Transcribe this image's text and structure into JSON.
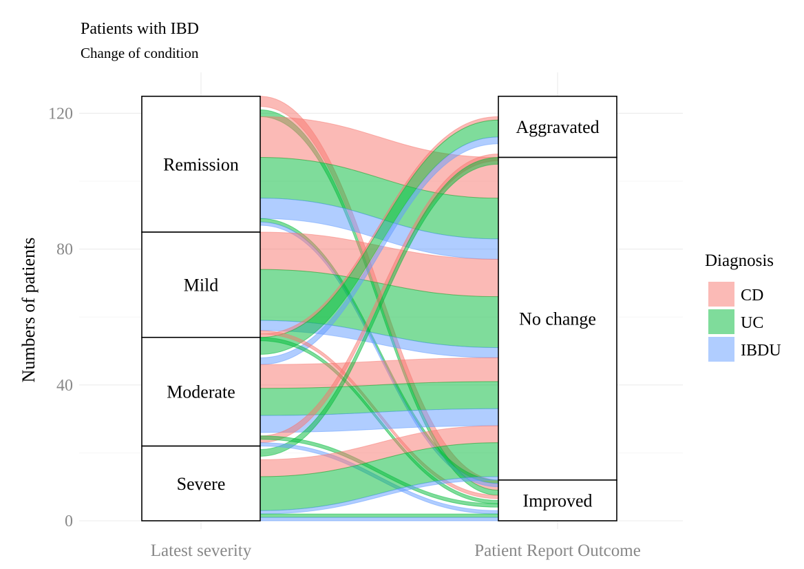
{
  "chart_data": {
    "type": "alluvial",
    "title": "Patients with IBD",
    "subtitle": "Change of condition",
    "ylabel": "Numbers of patients",
    "xlabel": "",
    "ylim": [
      0,
      125
    ],
    "yticks": [
      0,
      40,
      80,
      120
    ],
    "axes": [
      "Latest severity",
      "Patient Report Outcome"
    ],
    "grid": true,
    "legend": {
      "title": "Diagnosis",
      "position": "right"
    },
    "groups": [
      {
        "name": "CD",
        "color": "#F8766D"
      },
      {
        "name": "UC",
        "color": "#00BA38"
      },
      {
        "name": "IBDU",
        "color": "#619CFF"
      }
    ],
    "strata": {
      "Latest severity": [
        {
          "label": "Remission",
          "range": [
            85,
            125
          ]
        },
        {
          "label": "Mild",
          "range": [
            54,
            85
          ]
        },
        {
          "label": "Moderate",
          "range": [
            22,
            54
          ]
        },
        {
          "label": "Severe",
          "range": [
            0,
            22
          ]
        }
      ],
      "Patient Report Outcome": [
        {
          "label": "Aggravated",
          "range": [
            107,
            125
          ]
        },
        {
          "label": "No change",
          "range": [
            12,
            107
          ]
        },
        {
          "label": "Improved",
          "range": [
            0,
            12
          ]
        }
      ]
    },
    "flows": [
      {
        "group": "CD",
        "from": "Remission",
        "to": "Improved",
        "value": 3,
        "left": [
          122,
          125
        ],
        "right": [
          9,
          12
        ]
      },
      {
        "group": "UC",
        "from": "Remission",
        "to": "Improved",
        "value": 1,
        "left": [
          119,
          121
        ],
        "right": [
          7.5,
          9
        ]
      },
      {
        "group": "CD",
        "from": "Remission",
        "to": "No change",
        "value": 12,
        "left": [
          107,
          119
        ],
        "right": [
          95,
          107
        ]
      },
      {
        "group": "UC",
        "from": "Remission",
        "to": "No change",
        "value": 12,
        "left": [
          95,
          107
        ],
        "right": [
          83,
          95
        ]
      },
      {
        "group": "IBDU",
        "from": "Remission",
        "to": "No change",
        "value": 6,
        "left": [
          89,
          95
        ],
        "right": [
          77,
          83
        ]
      },
      {
        "group": "UC",
        "from": "Remission",
        "to": "Improved",
        "value": 1,
        "left": [
          88,
          89
        ],
        "right": [
          11,
          12
        ]
      },
      {
        "group": "IBDU",
        "from": "Remission",
        "to": "Improved",
        "value": 1,
        "left": [
          87,
          88
        ],
        "right": [
          10,
          11
        ]
      },
      {
        "group": "CD",
        "from": "Mild",
        "to": "No change",
        "value": 11,
        "left": [
          74,
          85
        ],
        "right": [
          66,
          77
        ]
      },
      {
        "group": "UC",
        "from": "Mild",
        "to": "No change",
        "value": 15,
        "left": [
          59,
          74
        ],
        "right": [
          51,
          66
        ]
      },
      {
        "group": "IBDU",
        "from": "Mild",
        "to": "No change",
        "value": 3,
        "left": [
          56,
          59
        ],
        "right": [
          48,
          51
        ]
      },
      {
        "group": "CD",
        "from": "Mild",
        "to": "Aggravated",
        "value": 1,
        "left": [
          54,
          55
        ],
        "right": [
          118,
          119
        ]
      },
      {
        "group": "UC",
        "from": "Mild",
        "to": "Aggravated",
        "value": 5,
        "left": [
          49,
          54
        ],
        "right": [
          113,
          118
        ]
      },
      {
        "group": "IBDU",
        "from": "Mild",
        "to": "Aggravated",
        "value": 2,
        "left": [
          46,
          48
        ],
        "right": [
          111,
          113
        ]
      },
      {
        "group": "CD",
        "from": "Moderate",
        "to": "Improved",
        "value": 1,
        "left": [
          55,
          56
        ],
        "right": [
          6.5,
          7.5
        ]
      },
      {
        "group": "UC",
        "from": "Moderate",
        "to": "Improved",
        "value": 1,
        "left": [
          53,
          54
        ],
        "right": [
          5,
          6
        ]
      },
      {
        "group": "CD",
        "from": "Moderate",
        "to": "No change",
        "value": 7,
        "left": [
          39,
          46
        ],
        "right": [
          41,
          48
        ]
      },
      {
        "group": "UC",
        "from": "Moderate",
        "to": "No change",
        "value": 8,
        "left": [
          31,
          39
        ],
        "right": [
          33,
          41
        ]
      },
      {
        "group": "IBDU",
        "from": "Moderate",
        "to": "No change",
        "value": 5,
        "left": [
          26,
          31
        ],
        "right": [
          28,
          33
        ]
      },
      {
        "group": "CD",
        "from": "Moderate",
        "to": "Aggravated",
        "value": 2,
        "left": [
          23,
          25
        ],
        "right": [
          106,
          108
        ]
      },
      {
        "group": "UC",
        "from": "Moderate",
        "to": "Aggravated",
        "value": 2,
        "left": [
          19,
          21
        ],
        "right": [
          105,
          107
        ]
      },
      {
        "group": "UC",
        "from": "Severe",
        "to": "Improved",
        "value": 1,
        "left": [
          24,
          25
        ],
        "right": [
          4,
          5
        ]
      },
      {
        "group": "IBDU",
        "from": "Severe",
        "to": "Improved",
        "value": 1,
        "left": [
          22,
          23
        ],
        "right": [
          2,
          3
        ]
      },
      {
        "group": "CD",
        "from": "Severe",
        "to": "No change",
        "value": 5,
        "left": [
          13,
          18
        ],
        "right": [
          23,
          28
        ]
      },
      {
        "group": "UC",
        "from": "Severe",
        "to": "No change",
        "value": 10,
        "left": [
          3,
          13
        ],
        "right": [
          13,
          23
        ]
      },
      {
        "group": "IBDU",
        "from": "Severe",
        "to": "Improved",
        "value": 1,
        "left": [
          2,
          3
        ],
        "right": [
          12,
          13
        ]
      },
      {
        "group": "UC",
        "from": "Severe",
        "to": "Improved",
        "value": 1,
        "left": [
          1,
          2
        ],
        "right": [
          1,
          2
        ]
      },
      {
        "group": "IBDU",
        "from": "Severe",
        "to": "Improved",
        "value": 1,
        "left": [
          0,
          1
        ],
        "right": [
          0,
          1
        ]
      }
    ]
  }
}
